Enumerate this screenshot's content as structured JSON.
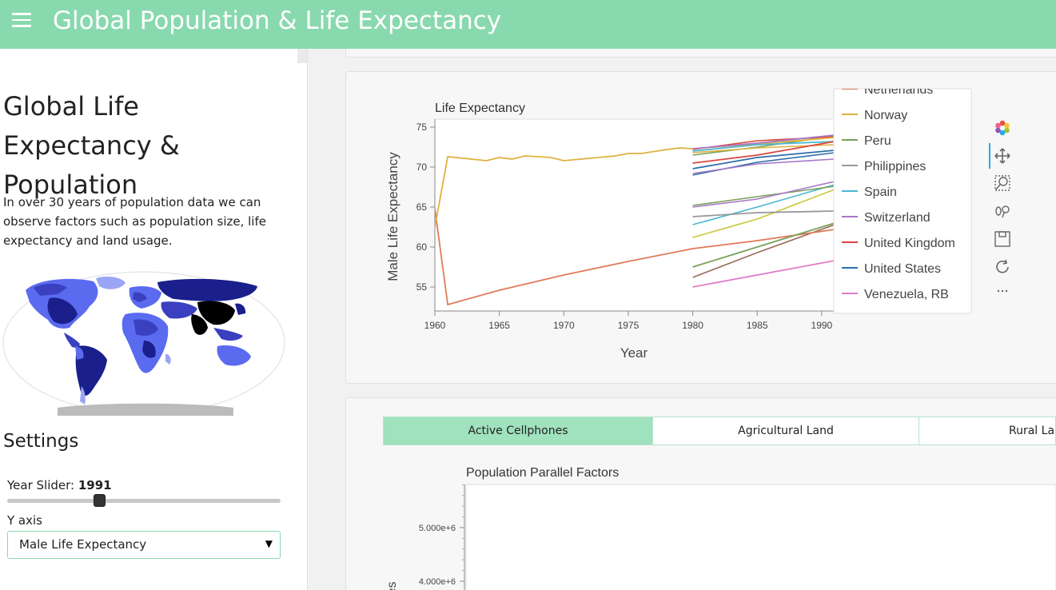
{
  "header": {
    "title": "Global Population & Life Expectancy"
  },
  "sidebar": {
    "heading": "Global Life Expectancy & Population",
    "description": "In over 30 years of population data we can observe factors such as population size, life expectancy and land usage.",
    "settings_title": "Settings",
    "slider": {
      "label": "Year Slider:",
      "value": "1991",
      "fraction": 0.34
    },
    "yaxis_label": "Y axis",
    "yaxis_select": {
      "value": "Male Life Expectancy"
    }
  },
  "tabs": [
    {
      "label": "Active Cellphones",
      "active": true
    },
    {
      "label": "Agricultural Land",
      "active": false
    },
    {
      "label": "Rural Lan",
      "active": false
    }
  ],
  "chart_data": [
    {
      "type": "line",
      "title": "Life Expectancy",
      "xlabel": "Year",
      "ylabel": "Male Life Expectancy",
      "xlim": [
        1960,
        1991
      ],
      "ylim": [
        52,
        76
      ],
      "xticks": [
        "1960",
        "1965",
        "1970",
        "1975",
        "1980",
        "1985",
        "1990"
      ],
      "yticks": [
        "55",
        "60",
        "65",
        "70",
        "75"
      ],
      "legend_position": "right",
      "series": [
        {
          "name": "Netherlands",
          "color": "#e07b5a",
          "x": [
            1960,
            1961,
            1965,
            1970,
            1975,
            1980,
            1985,
            1991
          ],
          "y": [
            64.8,
            52.8,
            54.6,
            56.5,
            58.2,
            59.8,
            60.8,
            62.2
          ]
        },
        {
          "name": "Norway",
          "color": "#e0b040",
          "x": [
            1960,
            1961,
            1964,
            1965,
            1966,
            1967,
            1969,
            1970,
            1972,
            1974,
            1975,
            1976,
            1978,
            1979,
            1980,
            1985,
            1991
          ],
          "y": [
            62.5,
            71.3,
            70.8,
            71.2,
            71.0,
            71.4,
            71.2,
            70.8,
            71.1,
            71.4,
            71.7,
            71.7,
            72.2,
            72.4,
            72.3,
            72.9,
            73.7
          ]
        },
        {
          "name": "Peru",
          "color": "#7aa05a",
          "x": [
            1980,
            1985,
            1991
          ],
          "y": [
            57.5,
            60.0,
            63.0
          ]
        },
        {
          "name": "Philippines",
          "color": "#999999",
          "x": [
            1980,
            1985,
            1991
          ],
          "y": [
            63.8,
            64.3,
            64.5
          ]
        },
        {
          "name": "Spain",
          "color": "#4ab8d0",
          "x": [
            1980,
            1985,
            1991
          ],
          "y": [
            72.0,
            72.8,
            73.2
          ]
        },
        {
          "name": "Switzerland",
          "color": "#a678c8",
          "x": [
            1980,
            1985,
            1991
          ],
          "y": [
            72.3,
            73.0,
            74.0
          ]
        },
        {
          "name": "United Kingdom",
          "color": "#d9463c",
          "x": [
            1980,
            1985,
            1991
          ],
          "y": [
            70.5,
            71.5,
            73.2
          ]
        },
        {
          "name": "United States",
          "color": "#2e6ea8",
          "x": [
            1980,
            1985,
            1991
          ],
          "y": [
            69.8,
            71.2,
            72.1
          ]
        },
        {
          "name": "Venezuela, RB",
          "color": "#e07bc8",
          "x": [
            1980,
            1985,
            1991
          ],
          "y": [
            55.0,
            56.5,
            58.3
          ]
        }
      ]
    },
    {
      "type": "line",
      "title": "Population Parallel Factors",
      "ylabel": "es",
      "yticks": [
        "5.000e+6",
        "4.000e+6"
      ]
    }
  ],
  "extra_lines": [
    {
      "color": "#c8c83a",
      "y": [
        61.2,
        63.5,
        67.2
      ]
    },
    {
      "color": "#4ab8d0",
      "y": [
        62.8,
        65.0,
        67.8
      ]
    },
    {
      "color": "#7aa05a",
      "y": [
        65.2,
        66.3,
        67.6
      ]
    },
    {
      "color": "#a678c8",
      "y": [
        65.0,
        66.0,
        68.2
      ]
    },
    {
      "color": "#9a6a5a",
      "y": [
        56.2,
        59.3,
        62.8
      ]
    },
    {
      "color": "#2e6ea8",
      "y": [
        69.0,
        70.6,
        71.8
      ]
    },
    {
      "color": "#7aa05a",
      "y": [
        71.5,
        72.5,
        73.9
      ]
    },
    {
      "color": "#e0b040",
      "y": [
        71.8,
        72.4,
        72.8
      ]
    },
    {
      "color": "#d9463c",
      "y": [
        72.2,
        73.3,
        73.8
      ]
    },
    {
      "color": "#a678c8",
      "y": [
        69.2,
        70.4,
        71.0
      ]
    }
  ],
  "toolbar": [
    "bokeh-logo-icon",
    "pan-icon",
    "box-zoom-icon",
    "wheel-zoom-icon",
    "save-icon",
    "reset-icon",
    "more-icon"
  ]
}
